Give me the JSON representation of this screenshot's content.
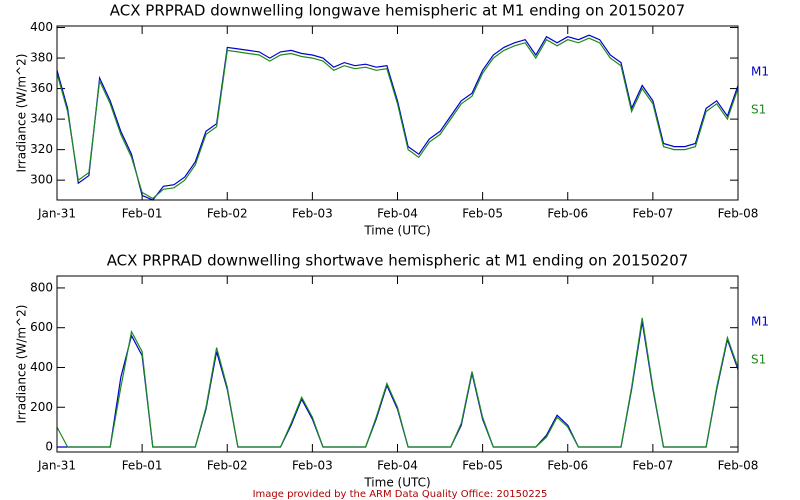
{
  "chart_data": [
    {
      "type": "line",
      "title": "ACX PRPRAD downwelling longwave hemispheric at M1 ending on 20150207",
      "x_label": "Time (UTC)",
      "y_label": "Irradiance (W/m^2)",
      "xlim": [
        0,
        8
      ],
      "xticks": [
        {
          "value": 0,
          "label": "Jan-31"
        },
        {
          "value": 1,
          "label": "Feb-01"
        },
        {
          "value": 2,
          "label": "Feb-02"
        },
        {
          "value": 3,
          "label": "Feb-03"
        },
        {
          "value": 4,
          "label": "Feb-04"
        },
        {
          "value": 5,
          "label": "Feb-05"
        },
        {
          "value": 6,
          "label": "Feb-06"
        },
        {
          "value": 7,
          "label": "Feb-07"
        },
        {
          "value": 8,
          "label": "Feb-08"
        }
      ],
      "ylim": [
        287,
        401
      ],
      "yticks": [
        300,
        320,
        340,
        360,
        380,
        400
      ],
      "x": [
        0,
        0.125,
        0.25,
        0.375,
        0.5,
        0.625,
        0.75,
        0.875,
        1,
        1.125,
        1.25,
        1.375,
        1.5,
        1.625,
        1.75,
        1.875,
        2,
        2.125,
        2.25,
        2.375,
        2.5,
        2.625,
        2.75,
        2.875,
        3,
        3.125,
        3.25,
        3.375,
        3.5,
        3.625,
        3.75,
        3.875,
        4,
        4.125,
        4.25,
        4.375,
        4.5,
        4.625,
        4.75,
        4.875,
        5,
        5.125,
        5.25,
        5.375,
        5.5,
        5.625,
        5.75,
        5.875,
        6,
        6.125,
        6.25,
        6.375,
        6.5,
        6.625,
        6.75,
        6.875,
        7,
        7.125,
        7.25,
        7.375,
        7.5,
        7.625,
        7.75,
        7.875,
        8
      ],
      "series": [
        {
          "name": "M1",
          "color": "#0000cc",
          "values": [
            372,
            347,
            298,
            303,
            367,
            352,
            332,
            317,
            290,
            287,
            296,
            297,
            302,
            312,
            332,
            337,
            387,
            386,
            385,
            384,
            380,
            384,
            385,
            383,
            382,
            380,
            374,
            377,
            375,
            376,
            374,
            375,
            352,
            322,
            317,
            327,
            332,
            342,
            352,
            357,
            372,
            382,
            387,
            390,
            392,
            382,
            394,
            390,
            394,
            392,
            395,
            392,
            382,
            377,
            347,
            362,
            352,
            324,
            322,
            322,
            324,
            347,
            352,
            342,
            362
          ]
        },
        {
          "name": "S1",
          "color": "#1e8a1e",
          "values": [
            370,
            345,
            300,
            305,
            365,
            350,
            330,
            315,
            292,
            288,
            294,
            295,
            300,
            310,
            330,
            335,
            385,
            384,
            383,
            382,
            378,
            382,
            383,
            381,
            380,
            378,
            372,
            375,
            373,
            374,
            372,
            373,
            350,
            320,
            315,
            325,
            330,
            340,
            350,
            355,
            370,
            380,
            385,
            388,
            390,
            380,
            392,
            388,
            392,
            390,
            393,
            390,
            380,
            375,
            345,
            360,
            350,
            322,
            320,
            320,
            322,
            345,
            350,
            340,
            360
          ]
        }
      ]
    },
    {
      "type": "line",
      "title": "ACX PRPRAD downwelling shortwave hemispheric at M1 ending on 20150207",
      "x_label": "Time (UTC)",
      "y_label": "Irradiance (W/m^2)",
      "xlim": [
        0,
        8
      ],
      "xticks": [
        {
          "value": 0,
          "label": "Jan-31"
        },
        {
          "value": 1,
          "label": "Feb-01"
        },
        {
          "value": 2,
          "label": "Feb-02"
        },
        {
          "value": 3,
          "label": "Feb-03"
        },
        {
          "value": 4,
          "label": "Feb-04"
        },
        {
          "value": 5,
          "label": "Feb-05"
        },
        {
          "value": 6,
          "label": "Feb-06"
        },
        {
          "value": 7,
          "label": "Feb-07"
        },
        {
          "value": 8,
          "label": "Feb-08"
        }
      ],
      "ylim": [
        -25,
        860
      ],
      "yticks": [
        0,
        200,
        400,
        600,
        800
      ],
      "x": [
        0,
        0.125,
        0.25,
        0.375,
        0.5,
        0.625,
        0.75,
        0.875,
        1,
        1.125,
        1.25,
        1.375,
        1.5,
        1.625,
        1.75,
        1.875,
        2,
        2.125,
        2.25,
        2.375,
        2.5,
        2.625,
        2.75,
        2.875,
        3,
        3.125,
        3.25,
        3.375,
        3.5,
        3.625,
        3.75,
        3.875,
        4,
        4.125,
        4.25,
        4.375,
        4.5,
        4.625,
        4.75,
        4.875,
        5,
        5.125,
        5.25,
        5.375,
        5.5,
        5.625,
        5.75,
        5.875,
        6,
        6.125,
        6.25,
        6.375,
        6.5,
        6.625,
        6.75,
        6.875,
        7,
        7.125,
        7.25,
        7.375,
        7.5,
        7.625,
        7.75,
        7.875,
        8
      ],
      "series": [
        {
          "name": "M1",
          "color": "#0000cc",
          "values": [
            0,
            0,
            0,
            0,
            0,
            0,
            350,
            560,
            460,
            0,
            0,
            0,
            0,
            0,
            190,
            480,
            290,
            0,
            0,
            0,
            0,
            0,
            110,
            240,
            140,
            0,
            0,
            0,
            0,
            0,
            140,
            310,
            190,
            0,
            0,
            0,
            0,
            0,
            110,
            370,
            140,
            0,
            0,
            0,
            0,
            0,
            60,
            160,
            110,
            0,
            0,
            0,
            0,
            0,
            290,
            630,
            290,
            0,
            0,
            0,
            0,
            0,
            290,
            540,
            390
          ]
        },
        {
          "name": "S1",
          "color": "#1e8a1e",
          "values": [
            100,
            0,
            0,
            0,
            0,
            0,
            300,
            580,
            480,
            0,
            0,
            0,
            0,
            0,
            200,
            500,
            300,
            0,
            0,
            0,
            0,
            0,
            120,
            250,
            150,
            0,
            0,
            0,
            0,
            0,
            150,
            320,
            200,
            0,
            0,
            0,
            0,
            0,
            120,
            380,
            150,
            0,
            0,
            0,
            0,
            0,
            50,
            150,
            100,
            0,
            0,
            0,
            0,
            0,
            300,
            650,
            300,
            0,
            0,
            0,
            0,
            0,
            300,
            550,
            400
          ]
        }
      ]
    }
  ],
  "footer": "Image provided by the ARM Data Quality Office: 20150225"
}
